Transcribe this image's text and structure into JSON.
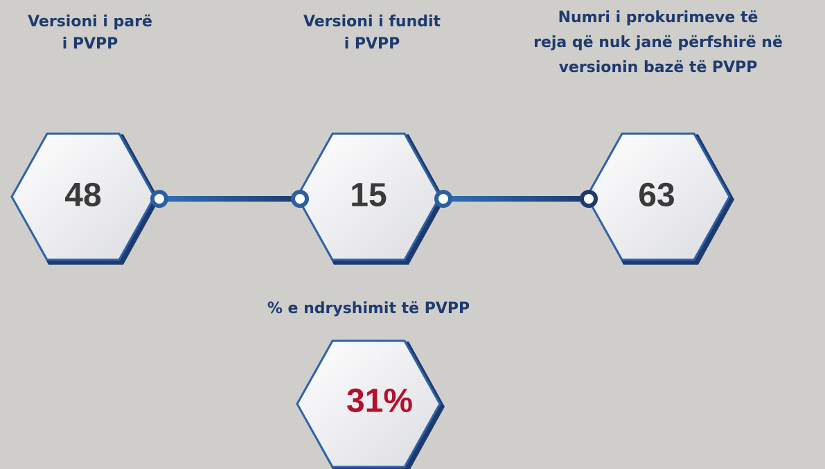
{
  "items": [
    {
      "label": [
        "Versioni i parë",
        "i PVPP"
      ],
      "value": "48"
    },
    {
      "label": [
        "Versioni i fundit",
        "i PVPP"
      ],
      "value": "15"
    },
    {
      "label": [
        "Numri i prokurimeve të",
        "reja që nuk janë përfshirë në",
        "versionin bazë të PVPP"
      ],
      "value": "63"
    },
    {
      "label": [
        "% e ndryshimit të PVPP"
      ],
      "value": "31%"
    }
  ]
}
